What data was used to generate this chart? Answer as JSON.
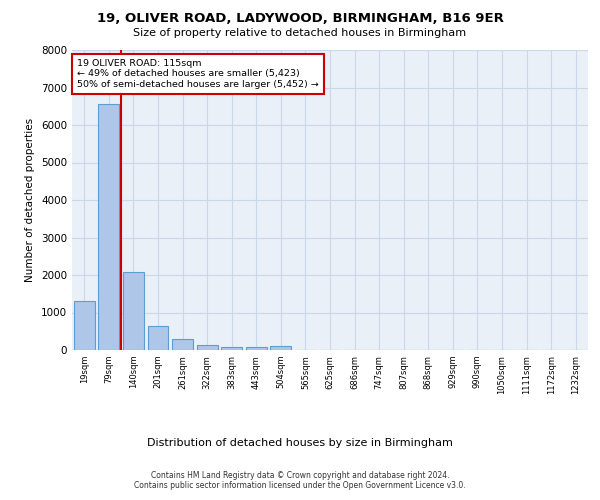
{
  "title_line1": "19, OLIVER ROAD, LADYWOOD, BIRMINGHAM, B16 9ER",
  "title_line2": "Size of property relative to detached houses in Birmingham",
  "xlabel": "Distribution of detached houses by size in Birmingham",
  "ylabel": "Number of detached properties",
  "categories": [
    "19sqm",
    "79sqm",
    "140sqm",
    "201sqm",
    "261sqm",
    "322sqm",
    "383sqm",
    "443sqm",
    "504sqm",
    "565sqm",
    "625sqm",
    "686sqm",
    "747sqm",
    "807sqm",
    "868sqm",
    "929sqm",
    "990sqm",
    "1050sqm",
    "1111sqm",
    "1172sqm",
    "1232sqm"
  ],
  "values": [
    1300,
    6550,
    2075,
    650,
    290,
    130,
    90,
    80,
    110,
    0,
    0,
    0,
    0,
    0,
    0,
    0,
    0,
    0,
    0,
    0,
    0
  ],
  "bar_color": "#aec6e8",
  "bar_edge_color": "#5a9fd4",
  "annotation_line1": "19 OLIVER ROAD: 115sqm",
  "annotation_line2": "← 49% of detached houses are smaller (5,423)",
  "annotation_line3": "50% of semi-detached houses are larger (5,452) →",
  "marker_line_color": "#cc0000",
  "ylim": [
    0,
    8000
  ],
  "yticks": [
    0,
    1000,
    2000,
    3000,
    4000,
    5000,
    6000,
    7000,
    8000
  ],
  "grid_color": "#c8d8e8",
  "background_color": "#eaf0f8",
  "footer_line1": "Contains HM Land Registry data © Crown copyright and database right 2024.",
  "footer_line2": "Contains public sector information licensed under the Open Government Licence v3.0."
}
